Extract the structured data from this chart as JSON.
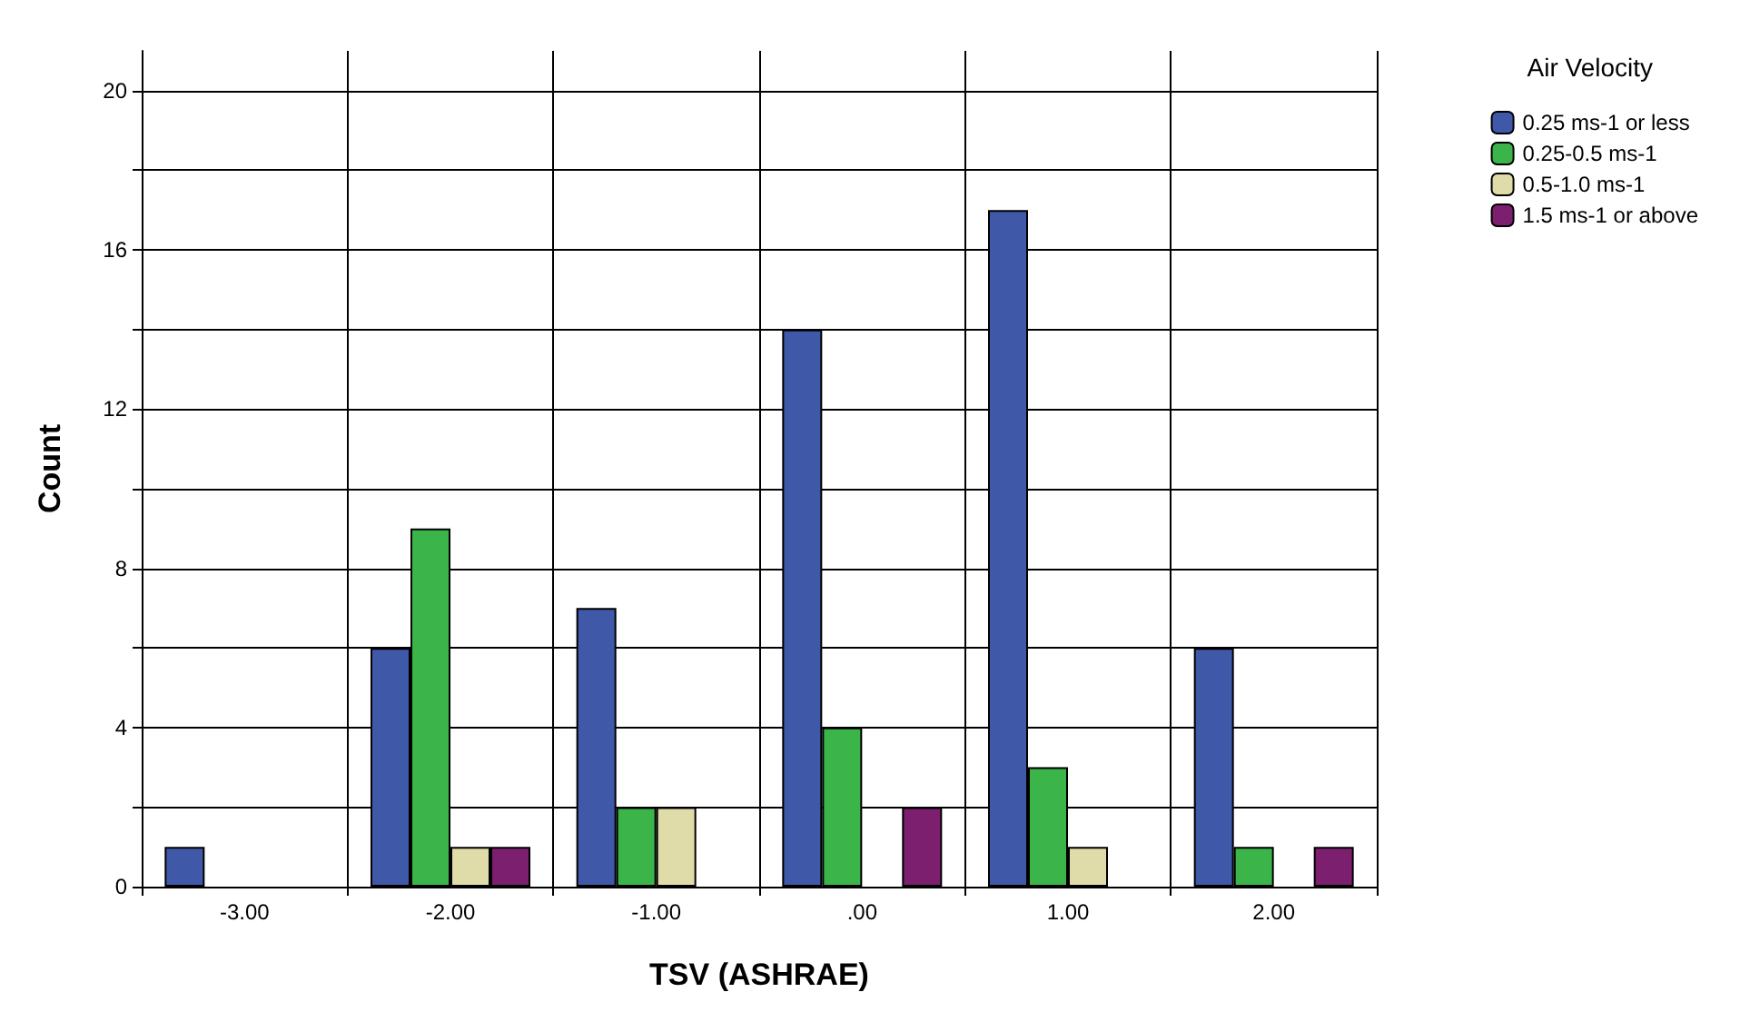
{
  "chart_data": {
    "type": "bar",
    "xlabel": "TSV (ASHRAE)",
    "ylabel": "Count",
    "legend_title": "Air Velocity",
    "categories": [
      "-3.00",
      "-2.00",
      "-1.00",
      ".00",
      "1.00",
      "2.00"
    ],
    "series": [
      {
        "name": "0.25 ms-1 or less",
        "color": "#3f58a8",
        "values": [
          1,
          6,
          7,
          14,
          17,
          6
        ]
      },
      {
        "name": "0.25-0.5 ms-1",
        "color": "#3bb54a",
        "values": [
          null,
          9,
          2,
          4,
          3,
          1
        ]
      },
      {
        "name": "0.5-1.0 ms-1",
        "color": "#e0dcaa",
        "values": [
          null,
          1,
          2,
          null,
          1,
          null
        ]
      },
      {
        "name": "1.5 ms-1 or above",
        "color": "#7b1f6e",
        "values": [
          null,
          1,
          null,
          2,
          null,
          1
        ]
      }
    ],
    "ylim": [
      0,
      21
    ],
    "yticks": [
      0,
      {
        "value": 2,
        "label": null
      },
      4,
      {
        "value": 6,
        "label": null
      },
      8,
      {
        "value": 10,
        "label": null
      },
      12,
      {
        "value": 14,
        "label": null
      },
      16,
      {
        "value": 18,
        "label": null
      },
      20
    ],
    "grid": true,
    "legend": "top right"
  }
}
